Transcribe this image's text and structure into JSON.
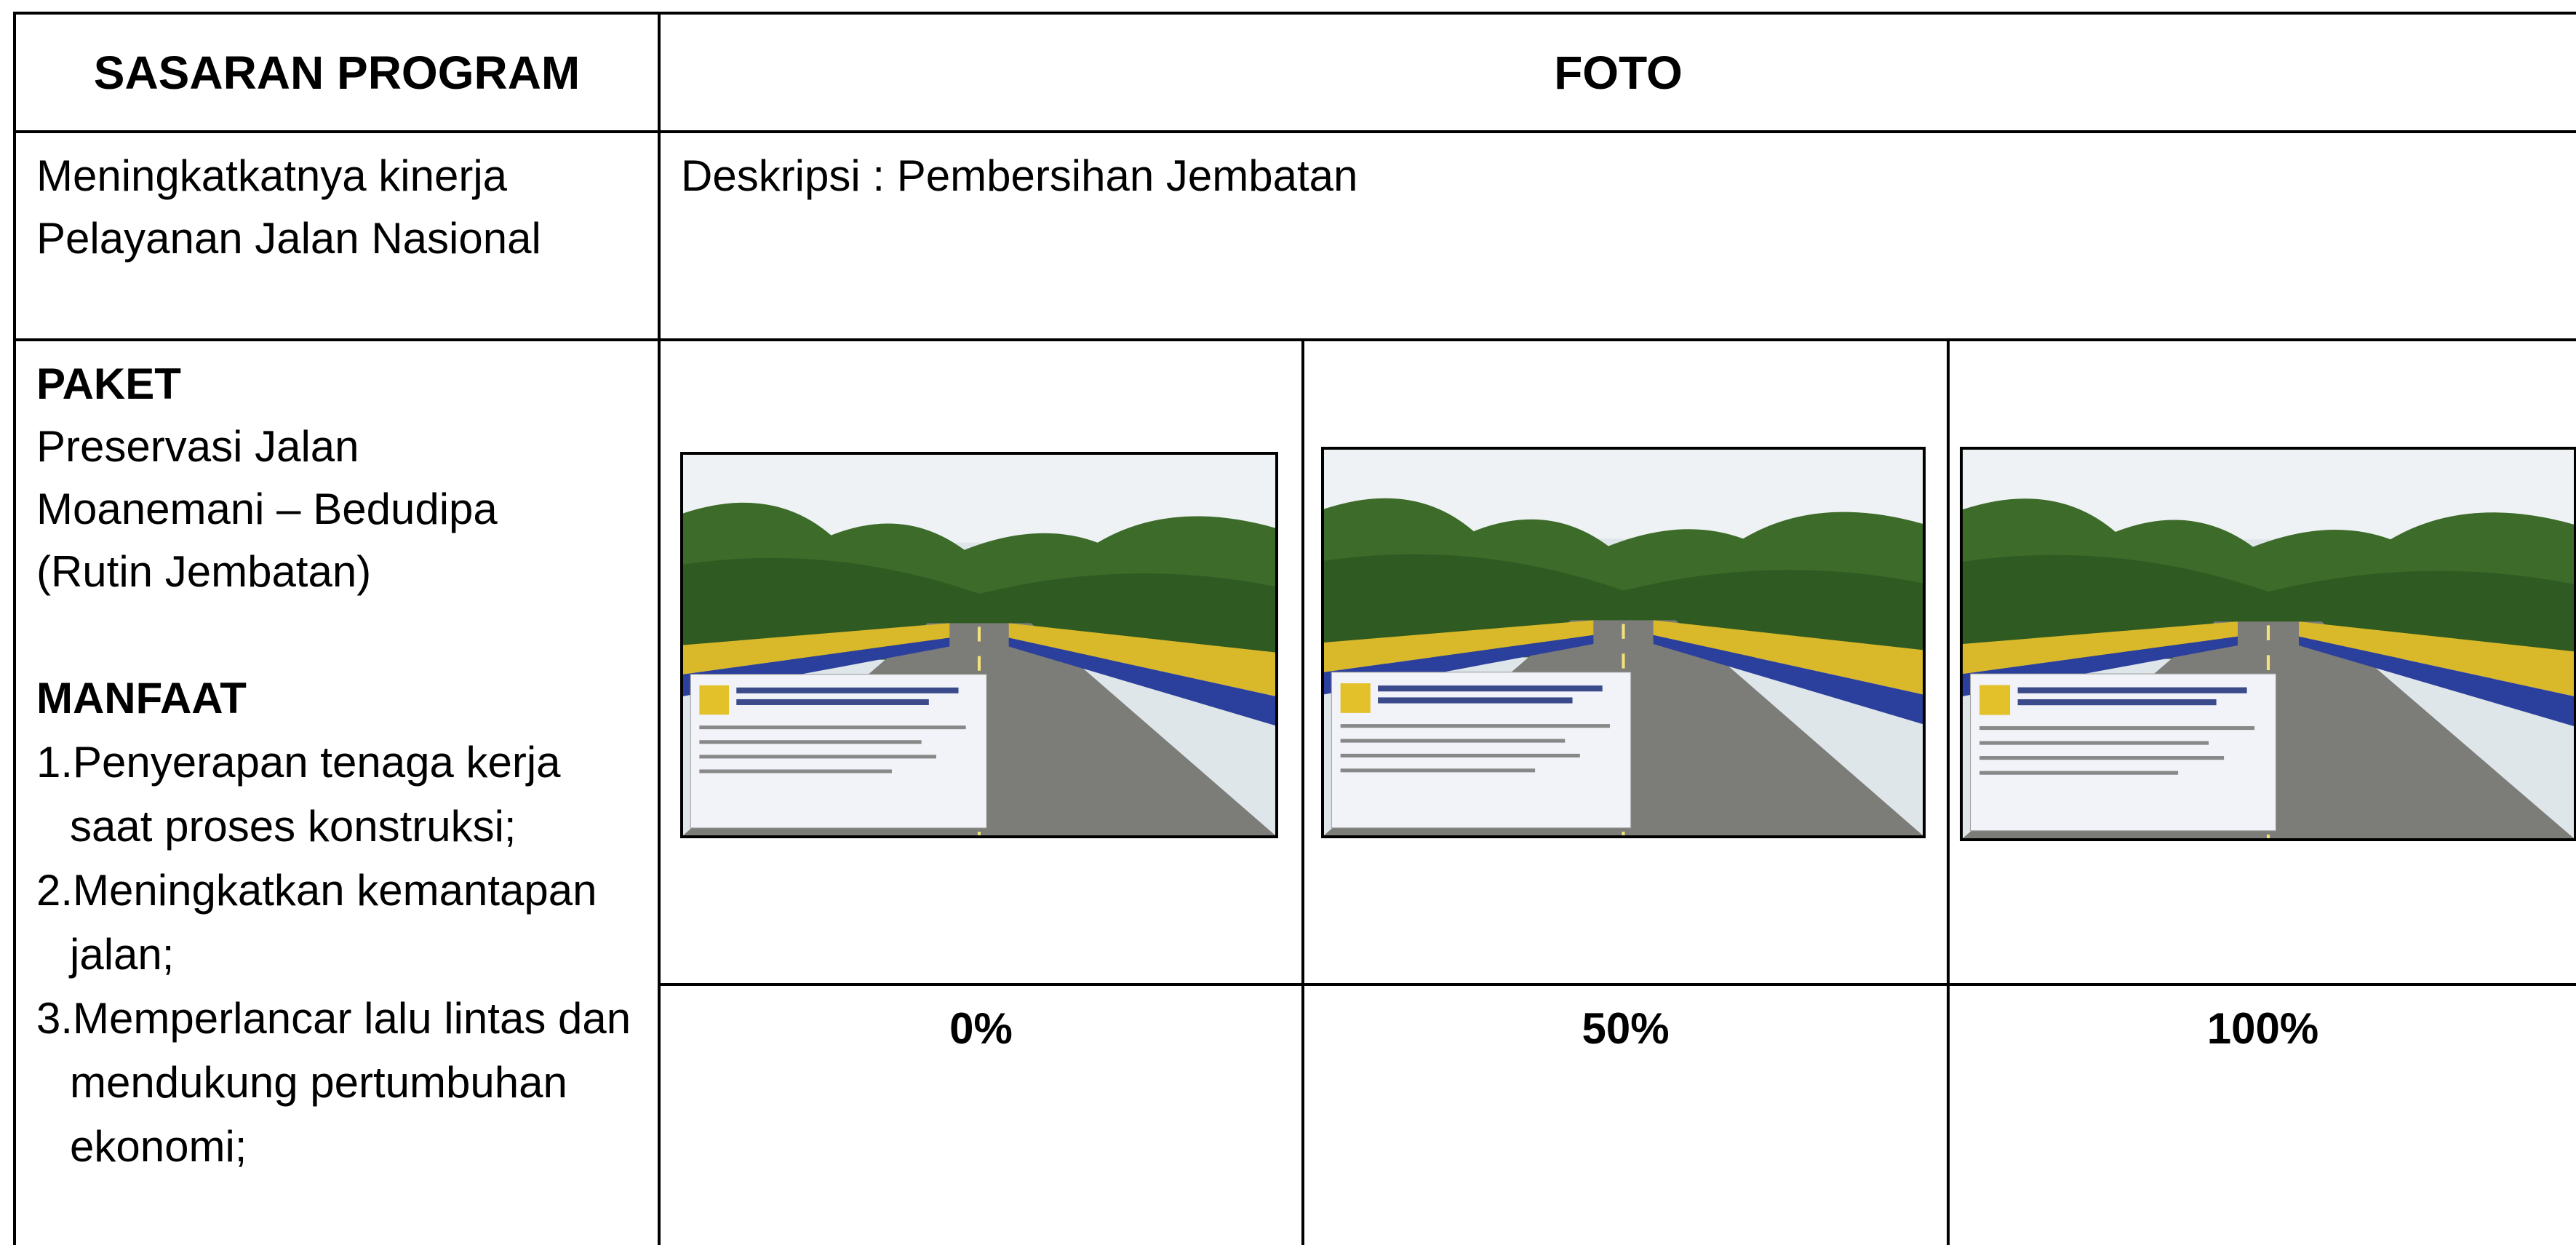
{
  "table": {
    "header": [
      "SASARAN PROGRAM",
      "FOTO"
    ],
    "sasaran": [
      "Meningkatkatnya kinerja",
      "Pelayanan Jalan Nasional"
    ],
    "description": "Deskripsi : Pembersihan Jembatan",
    "paket": {
      "label": "PAKET",
      "lines": [
        "Preservasi Jalan",
        "Moanemani – Bedudipa",
        "(Rutin Jembatan)"
      ]
    },
    "manfaat": {
      "label": "MANFAAT",
      "items": [
        "1.Penyerapan tenaga kerja saat proses konstruksi;",
        "2.Meningkatkan kemantapan jalan;",
        "3.Memperlancar lalu lintas dan mendukung pertumbuhan ekonomi;"
      ]
    },
    "progress": [
      "0%",
      "50%",
      "100%"
    ]
  }
}
